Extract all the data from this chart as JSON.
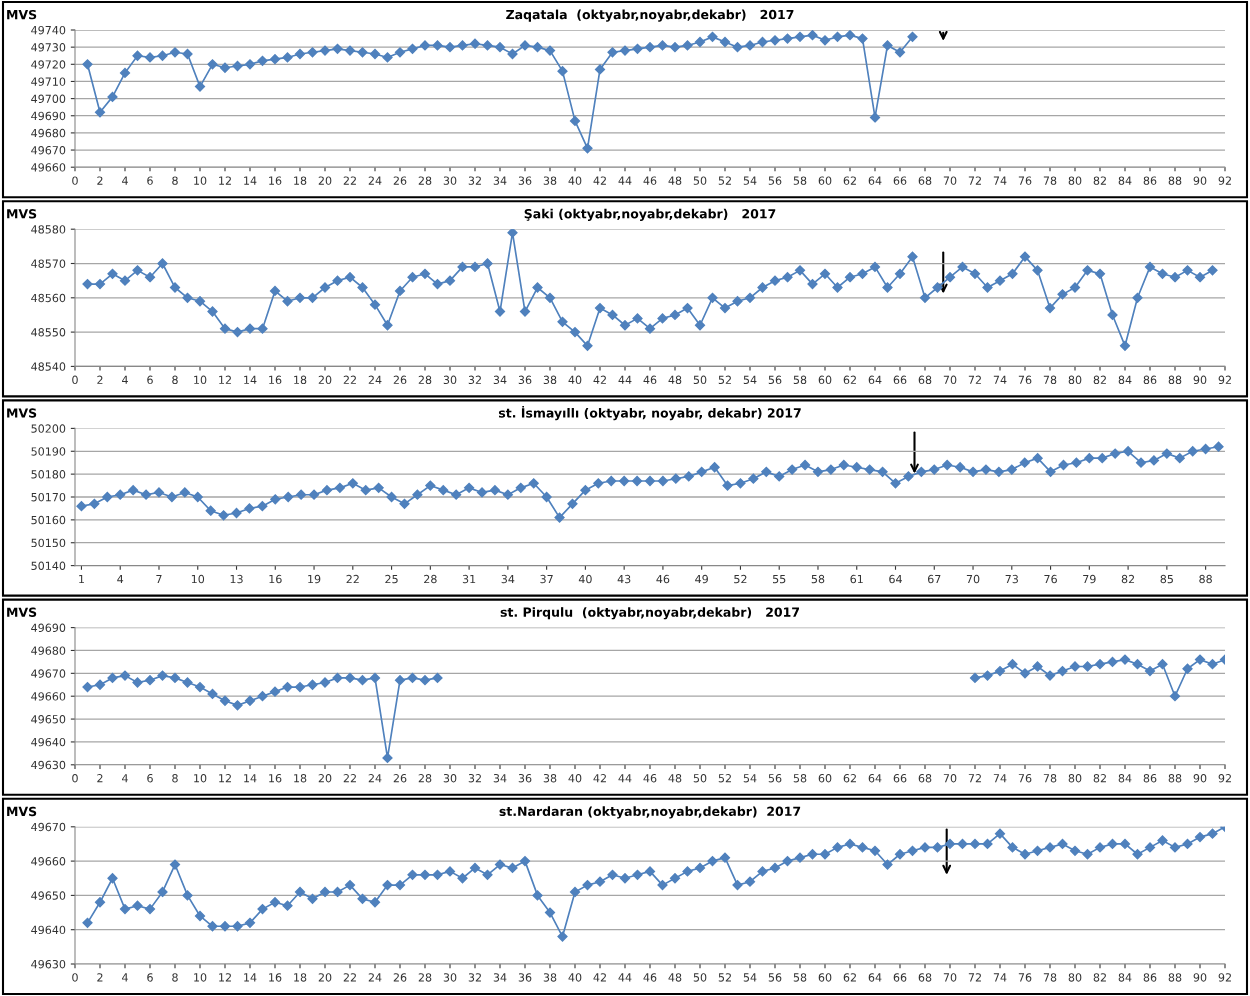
{
  "chart_data": [
    {
      "type": "line",
      "title": "Zaqatala  (oktyabr,noyabr,dekabr)   2017",
      "ylabel": "MVS",
      "x": [
        1,
        2,
        3,
        4,
        5,
        6,
        7,
        8,
        9,
        10,
        11,
        12,
        13,
        14,
        15,
        16,
        17,
        18,
        19,
        20,
        21,
        22,
        23,
        24,
        25,
        26,
        27,
        28,
        29,
        30,
        31,
        32,
        33,
        34,
        35,
        36,
        37,
        38,
        39,
        40,
        41,
        42,
        43,
        44,
        45,
        46,
        47,
        48,
        49,
        50,
        51,
        52,
        53,
        54,
        55,
        56,
        57,
        58,
        59,
        60,
        61,
        62,
        63,
        64,
        65,
        66,
        67
      ],
      "series": [
        {
          "color": "#4f81bd",
          "values": [
            49720,
            49692,
            49701,
            49715,
            49725,
            49724,
            49725,
            49727,
            49726,
            49707,
            49720,
            49718,
            49719,
            49720,
            49722,
            49723,
            49724,
            49726,
            49727,
            49728,
            49729,
            49728,
            49727,
            49726,
            49724,
            49727,
            49729,
            49731,
            49731,
            49730,
            49731,
            49732,
            49731,
            49730,
            49726,
            49731,
            49730,
            49728,
            49716,
            49687,
            49671,
            49717,
            49727,
            49728,
            49729,
            49730,
            49731,
            49730,
            49731,
            49733,
            49736,
            49733,
            49730,
            49731,
            49733,
            49734,
            49735,
            49736,
            49737,
            49734,
            49736,
            49737,
            49735,
            49689,
            49731,
            49727,
            49736
          ]
        }
      ],
      "xlim": [
        0,
        92
      ],
      "xticks": [
        0,
        2,
        4,
        6,
        8,
        10,
        12,
        14,
        16,
        18,
        20,
        22,
        24,
        26,
        28,
        30,
        32,
        34,
        36,
        38,
        40,
        42,
        44,
        46,
        48,
        50,
        52,
        54,
        56,
        58,
        60,
        62,
        64,
        66,
        68,
        70,
        72,
        74,
        76,
        78,
        80,
        82,
        84,
        86,
        88,
        90,
        92
      ],
      "ylim": [
        49660,
        49740
      ],
      "yticks": [
        49660,
        49670,
        49680,
        49690,
        49700,
        49710,
        49720,
        49730,
        49740
      ],
      "grid": "y",
      "marker": "diamond",
      "line_style": "solid",
      "legend": false
    },
    {
      "type": "line",
      "title": "Şaki (oktyabr,noyabr,dekabr)   2017",
      "ylabel": "MVS",
      "x": [
        1,
        2,
        3,
        4,
        5,
        6,
        7,
        8,
        9,
        10,
        11,
        12,
        13,
        14,
        15,
        16,
        17,
        18,
        19,
        20,
        21,
        22,
        23,
        24,
        25,
        26,
        27,
        28,
        29,
        30,
        31,
        32,
        33,
        34,
        35,
        36,
        37,
        38,
        39,
        40,
        41,
        42,
        43,
        44,
        45,
        46,
        47,
        48,
        49,
        50,
        51,
        52,
        53,
        54,
        55,
        56,
        57,
        58,
        59,
        60,
        61,
        62,
        63,
        64,
        65,
        66,
        67,
        68,
        69,
        70,
        71,
        72,
        73,
        74,
        75,
        76,
        77,
        78,
        79,
        80,
        81,
        82,
        83,
        84,
        85,
        86,
        87,
        88,
        89,
        90,
        91
      ],
      "series": [
        {
          "color": "#4f81bd",
          "values": [
            48564,
            48564,
            48567,
            48565,
            48568,
            48566,
            48570,
            48563,
            48560,
            48559,
            48556,
            48551,
            48550,
            48551,
            48551,
            48562,
            48559,
            48560,
            48560,
            48563,
            48565,
            48566,
            48563,
            48558,
            48552,
            48562,
            48566,
            48567,
            48564,
            48565,
            48569,
            48569,
            48570,
            48556,
            48579,
            48556,
            48563,
            48560,
            48553,
            48550,
            48546,
            48557,
            48555,
            48552,
            48554,
            48551,
            48554,
            48555,
            48557,
            48552,
            48560,
            48557,
            48559,
            48560,
            48563,
            48565,
            48566,
            48568,
            48564,
            48567,
            48563,
            48566,
            48567,
            48569,
            48563,
            48567,
            48572,
            48560,
            48563,
            48566,
            48569,
            48567,
            48563,
            48565,
            48567,
            48572,
            48568,
            48557,
            48561,
            48563,
            48568,
            48567,
            48555,
            48546,
            48560,
            48569,
            48567,
            48566,
            48568,
            48566,
            48568
          ]
        }
      ],
      "xlim": [
        0,
        92
      ],
      "xticks": [
        0,
        2,
        4,
        6,
        8,
        10,
        12,
        14,
        16,
        18,
        20,
        22,
        24,
        26,
        28,
        30,
        32,
        34,
        36,
        38,
        40,
        42,
        44,
        46,
        48,
        50,
        52,
        54,
        56,
        58,
        60,
        62,
        64,
        66,
        68,
        70,
        72,
        74,
        76,
        78,
        80,
        82,
        84,
        86,
        88,
        90,
        92
      ],
      "ylim": [
        48540,
        48580
      ],
      "yticks": [
        48540,
        48550,
        48560,
        48570,
        48580
      ],
      "grid": "y",
      "marker": "diamond",
      "line_style": "solid",
      "legend": false
    },
    {
      "type": "line",
      "title": "st. İsmayıllı (oktyabr, noyabr, dekabr) 2017",
      "ylabel": "MVS",
      "x": [
        1,
        2,
        3,
        4,
        5,
        6,
        7,
        8,
        9,
        10,
        11,
        12,
        13,
        14,
        15,
        16,
        17,
        18,
        19,
        20,
        21,
        22,
        23,
        24,
        25,
        26,
        27,
        28,
        29,
        30,
        31,
        32,
        33,
        34,
        35,
        36,
        37,
        38,
        39,
        40,
        41,
        42,
        43,
        44,
        45,
        46,
        47,
        48,
        49,
        50,
        51,
        52,
        53,
        54,
        55,
        56,
        57,
        58,
        59,
        60,
        61,
        62,
        63,
        64,
        65,
        66,
        67,
        68,
        69,
        70,
        71,
        72,
        73,
        74,
        75,
        76,
        77,
        78,
        79,
        80,
        81,
        82,
        83,
        84,
        85,
        86,
        87,
        88,
        89
      ],
      "series": [
        {
          "color": "#4f81bd",
          "values": [
            50166,
            50167,
            50170,
            50171,
            50173,
            50171,
            50172,
            50170,
            50172,
            50170,
            50164,
            50162,
            50163,
            50165,
            50166,
            50169,
            50170,
            50171,
            50171,
            50173,
            50174,
            50176,
            50173,
            50174,
            50170,
            50167,
            50171,
            50175,
            50173,
            50171,
            50174,
            50172,
            50173,
            50171,
            50174,
            50176,
            50170,
            50161,
            50167,
            50173,
            50176,
            50177,
            50177,
            50177,
            50177,
            50177,
            50178,
            50179,
            50181,
            50183,
            50175,
            50176,
            50178,
            50181,
            50179,
            50182,
            50184,
            50181,
            50182,
            50184,
            50183,
            50182,
            50181,
            50176,
            50179,
            50181,
            50182,
            50184,
            50183,
            50181,
            50182,
            50181,
            50182,
            50185,
            50187,
            50181,
            50184,
            50185,
            50187,
            50187,
            50189,
            50190,
            50185,
            50186,
            50189,
            50187,
            50190,
            50191,
            50192
          ]
        }
      ],
      "xlim": [
        0.5,
        89.5
      ],
      "xticks": [
        1,
        4,
        7,
        10,
        13,
        16,
        19,
        22,
        25,
        28,
        31,
        34,
        37,
        40,
        43,
        46,
        49,
        52,
        55,
        58,
        61,
        64,
        67,
        70,
        73,
        76,
        79,
        82,
        85,
        88
      ],
      "ylim": [
        50140,
        50200
      ],
      "yticks": [
        50140,
        50150,
        50160,
        50170,
        50180,
        50190,
        50200
      ],
      "grid": "y",
      "marker": "diamond",
      "line_style": "solid",
      "legend": false
    },
    {
      "type": "line",
      "title": "st. Pirqulu  (oktyabr,noyabr,dekabr)   2017",
      "ylabel": "MVS",
      "x": [
        1,
        2,
        3,
        4,
        5,
        6,
        7,
        8,
        9,
        10,
        11,
        12,
        13,
        14,
        15,
        16,
        17,
        18,
        19,
        20,
        21,
        22,
        23,
        24,
        25,
        26,
        27,
        28,
        29,
        30,
        72,
        73,
        74,
        75,
        76,
        77,
        78,
        79,
        80,
        81,
        82,
        83,
        84,
        85,
        86,
        87,
        88,
        89,
        90,
        91,
        92
      ],
      "series": [
        {
          "color": "#4f81bd",
          "values": [
            49664,
            49665,
            49668,
            49669,
            49666,
            49667,
            49669,
            49668,
            49666,
            49664,
            49661,
            49658,
            49656,
            49658,
            49660,
            49662,
            49664,
            49664,
            49665,
            49666,
            49668,
            49668,
            49667,
            49668,
            49633,
            49667,
            49668,
            49667,
            49668,
            null,
            49668,
            49669,
            49671,
            49674,
            49670,
            49673,
            49669,
            49671,
            49673,
            49673,
            49674,
            49675,
            49676,
            49674,
            49671,
            49674,
            49660,
            49672,
            49676,
            49674,
            49676
          ]
        }
      ],
      "xlim": [
        0,
        92
      ],
      "xticks": [
        0,
        2,
        4,
        6,
        8,
        10,
        12,
        14,
        16,
        18,
        20,
        22,
        24,
        26,
        28,
        30,
        32,
        34,
        36,
        38,
        40,
        42,
        44,
        46,
        48,
        50,
        52,
        54,
        56,
        58,
        60,
        62,
        64,
        66,
        68,
        70,
        72,
        74,
        76,
        78,
        80,
        82,
        84,
        86,
        88,
        90,
        92
      ],
      "ylim": [
        49630,
        49690
      ],
      "yticks": [
        49630,
        49640,
        49650,
        49660,
        49670,
        49680,
        49690
      ],
      "grid": "y",
      "marker": "diamond",
      "line_style": "solid",
      "legend": false
    },
    {
      "type": "line",
      "title": "st.Nardaran (oktyabr,noyabr,dekabr)  2017",
      "ylabel": "MVS",
      "x": [
        1,
        2,
        3,
        4,
        5,
        6,
        7,
        8,
        9,
        10,
        11,
        12,
        13,
        14,
        15,
        16,
        17,
        18,
        19,
        20,
        21,
        22,
        23,
        24,
        25,
        26,
        27,
        28,
        29,
        30,
        31,
        32,
        33,
        34,
        35,
        36,
        37,
        38,
        39,
        40,
        41,
        42,
        43,
        44,
        45,
        46,
        47,
        48,
        49,
        50,
        51,
        52,
        53,
        54,
        55,
        56,
        57,
        58,
        59,
        60,
        61,
        62,
        63,
        64,
        65,
        66,
        67,
        68,
        69,
        70,
        71,
        72,
        73,
        74,
        75,
        76,
        77,
        78,
        79,
        80,
        81,
        82,
        83,
        84,
        85,
        86,
        87,
        88,
        89,
        90,
        91,
        92
      ],
      "series": [
        {
          "color": "#4f81bd",
          "values": [
            49642,
            49648,
            49655,
            49646,
            49647,
            49646,
            49651,
            49659,
            49650,
            49644,
            49641,
            49641,
            49641,
            49642,
            49646,
            49648,
            49647,
            49651,
            49649,
            49651,
            49651,
            49653,
            49649,
            49648,
            49653,
            49653,
            49656,
            49656,
            49656,
            49657,
            49655,
            49658,
            49656,
            49659,
            49658,
            49660,
            49650,
            49645,
            49638,
            49651,
            49653,
            49654,
            49656,
            49655,
            49656,
            49657,
            49653,
            49655,
            49657,
            49658,
            49660,
            49661,
            49653,
            49654,
            49657,
            49658,
            49660,
            49661,
            49662,
            49662,
            49664,
            49665,
            49664,
            49663,
            49659,
            49662,
            49663,
            49664,
            49664,
            49665,
            49665,
            49665,
            49665,
            49668,
            49664,
            49662,
            49663,
            49664,
            49665,
            49663,
            49662,
            49664,
            49665,
            49665,
            49662,
            49664,
            49666,
            49664,
            49665,
            49667,
            49668,
            49670
          ]
        }
      ],
      "xlim": [
        0,
        92
      ],
      "xticks": [
        0,
        2,
        4,
        6,
        8,
        10,
        12,
        14,
        16,
        18,
        20,
        22,
        24,
        26,
        28,
        30,
        32,
        34,
        36,
        38,
        40,
        42,
        44,
        46,
        48,
        50,
        52,
        54,
        56,
        58,
        60,
        62,
        64,
        66,
        68,
        70,
        72,
        74,
        76,
        78,
        80,
        82,
        84,
        86,
        88,
        90,
        92
      ],
      "ylim": [
        49630,
        49670
      ],
      "yticks": [
        49630,
        49640,
        49650,
        49660,
        49670
      ],
      "grid": "y",
      "marker": "diamond",
      "line_style": "solid",
      "legend": false
    }
  ]
}
